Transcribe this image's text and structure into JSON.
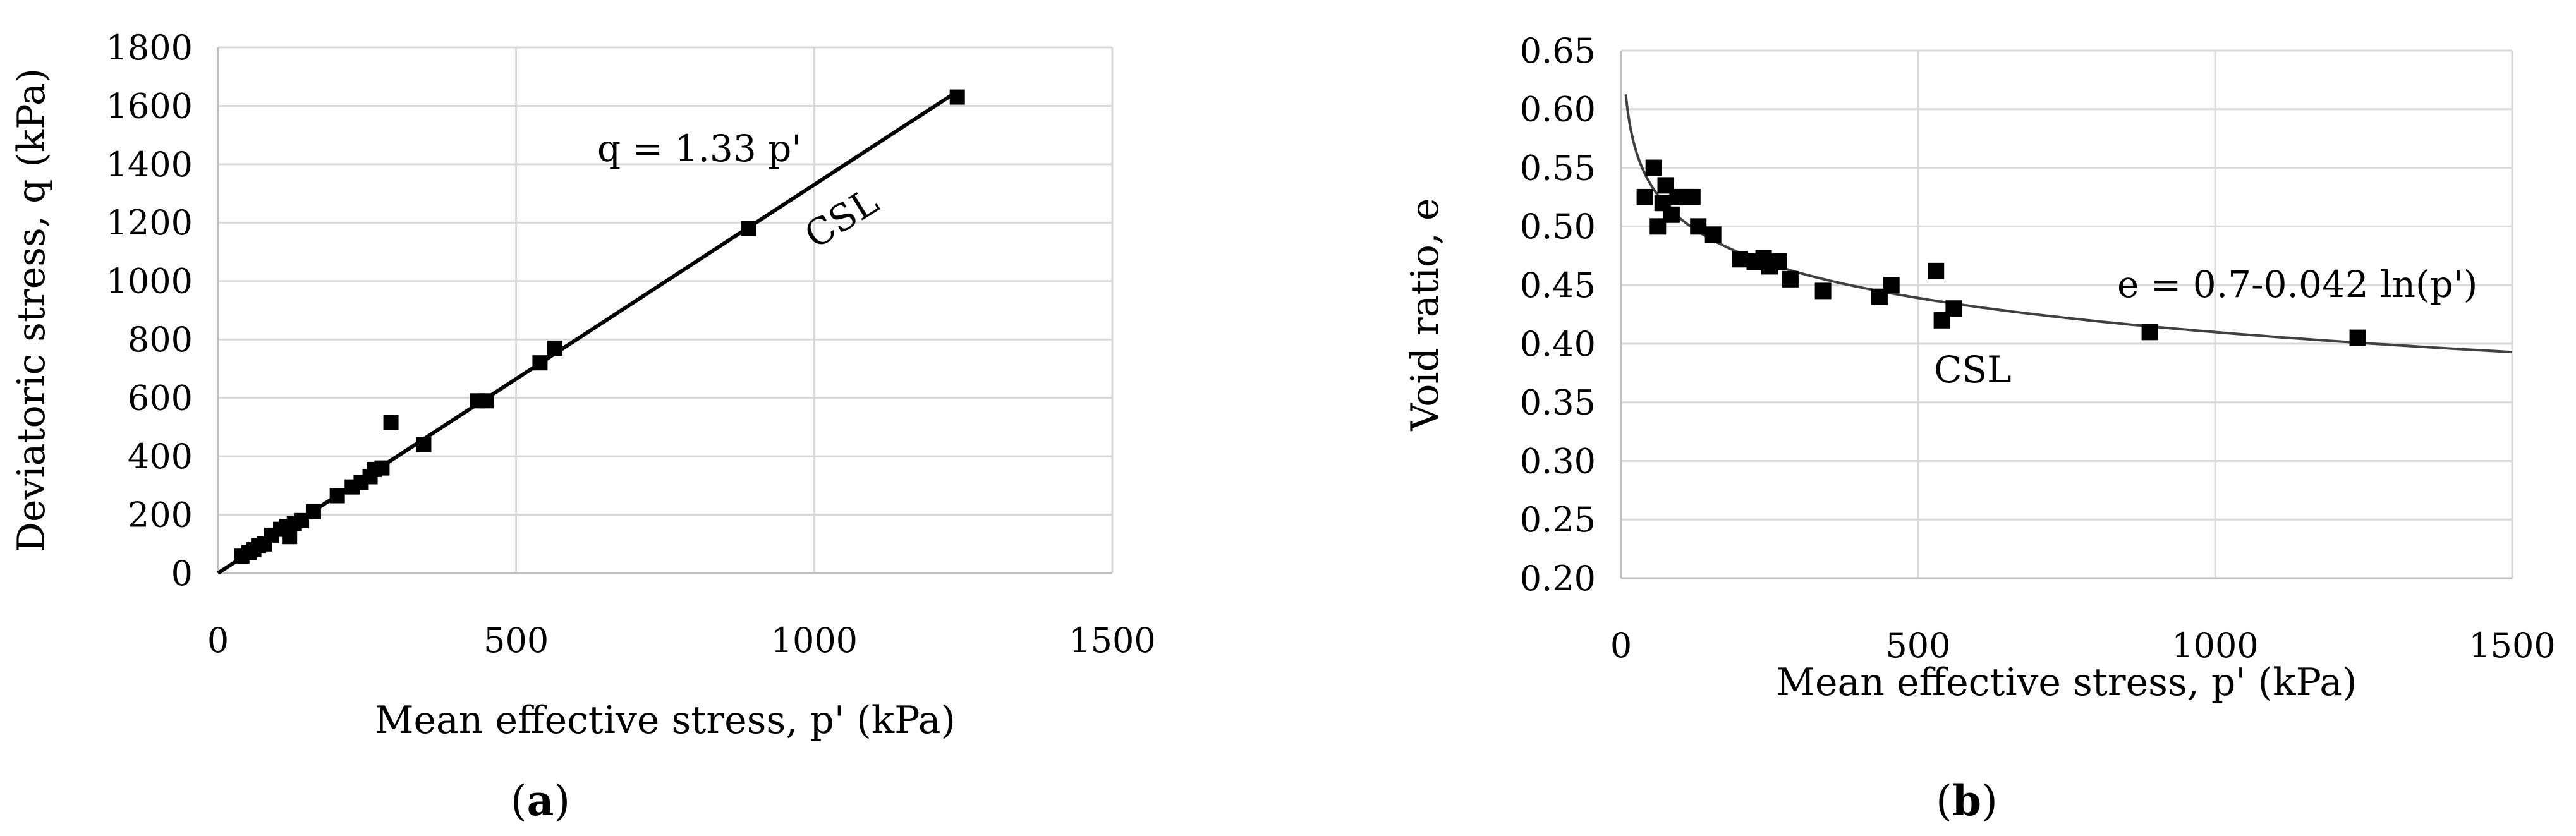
{
  "panels": [
    {
      "caption": "a",
      "chart_data": {
        "type": "scatter",
        "xlabel": "Mean effective stress, p' (kPa)",
        "ylabel": "Deviatoric stress, q (kPa)",
        "xlim": [
          0,
          1500
        ],
        "ylim": [
          0,
          1800
        ],
        "xticks": [
          0,
          500,
          1000,
          1500
        ],
        "yticks": [
          0,
          200,
          400,
          600,
          800,
          1000,
          1200,
          1400,
          1600,
          1800
        ],
        "grid": true,
        "series": [
          {
            "marker": "square",
            "color": "#000000",
            "points": [
              [
                40,
                58
              ],
              [
                52,
                70
              ],
              [
                60,
                80
              ],
              [
                68,
                95
              ],
              [
                78,
                100
              ],
              [
                90,
                130
              ],
              [
                105,
                150
              ],
              [
                115,
                160
              ],
              [
                120,
                125
              ],
              [
                128,
                170
              ],
              [
                140,
                180
              ],
              [
                160,
                210
              ],
              [
                200,
                265
              ],
              [
                225,
                295
              ],
              [
                240,
                310
              ],
              [
                255,
                330
              ],
              [
                262,
                355
              ],
              [
                275,
                360
              ],
              [
                290,
                515
              ],
              [
                345,
                440
              ],
              [
                435,
                590
              ],
              [
                450,
                590
              ],
              [
                540,
                720
              ],
              [
                565,
                770
              ],
              [
                890,
                1180
              ],
              [
                1240,
                1630
              ]
            ]
          }
        ],
        "trendline": {
          "kind": "linear",
          "slope": 1.33,
          "x_range": [
            0,
            1240
          ],
          "equation": "q = 1.33 p'",
          "label": "CSL"
        }
      }
    },
    {
      "caption": "b",
      "chart_data": {
        "type": "scatter",
        "xlabel": "Mean effective stress, p' (kPa)",
        "ylabel": "Void ratio, e",
        "xlim": [
          0,
          1500
        ],
        "ylim": [
          0.2,
          0.65
        ],
        "xticks": [
          0,
          500,
          1000,
          1500
        ],
        "yticks": [
          0.2,
          0.25,
          0.3,
          0.35,
          0.4,
          0.45,
          0.5,
          0.55,
          0.6,
          0.65
        ],
        "ytick_labels": [
          "0.20",
          "0.25",
          "0.30",
          "0.35",
          "0.40",
          "0.45",
          "0.50",
          "0.55",
          "0.60",
          "0.65"
        ],
        "grid": true,
        "series": [
          {
            "marker": "square",
            "color": "#000000",
            "points": [
              [
                40,
                0.525
              ],
              [
                55,
                0.55
              ],
              [
                62,
                0.5
              ],
              [
                70,
                0.52
              ],
              [
                75,
                0.535
              ],
              [
                85,
                0.51
              ],
              [
                95,
                0.525
              ],
              [
                110,
                0.525
              ],
              [
                120,
                0.525
              ],
              [
                130,
                0.5
              ],
              [
                155,
                0.493
              ],
              [
                200,
                0.472
              ],
              [
                225,
                0.47
              ],
              [
                240,
                0.473
              ],
              [
                250,
                0.466
              ],
              [
                265,
                0.47
              ],
              [
                285,
                0.455
              ],
              [
                340,
                0.445
              ],
              [
                435,
                0.44
              ],
              [
                455,
                0.45
              ],
              [
                530,
                0.462
              ],
              [
                540,
                0.42
              ],
              [
                560,
                0.43
              ],
              [
                890,
                0.41
              ],
              [
                1240,
                0.405
              ]
            ]
          }
        ],
        "trendline": {
          "kind": "log",
          "a": 0.7,
          "b": -0.042,
          "x_range": [
            8,
            1500
          ],
          "equation": "e = 0.7-0.042 ln(p')",
          "label": "CSL"
        }
      }
    }
  ]
}
